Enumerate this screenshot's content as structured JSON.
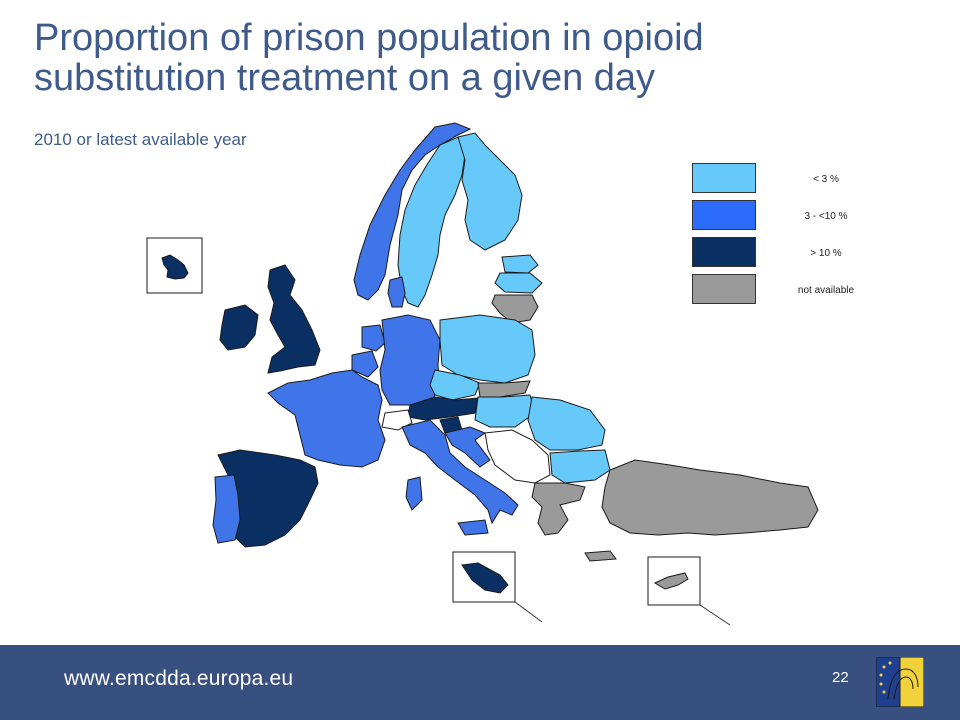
{
  "slide": {
    "title": "Proportion of prison population in opioid substitution treatment on a given day",
    "subtitle": "2010 or latest available year"
  },
  "legend": [
    {
      "label": "< 3 %",
      "color": "#66c9f9"
    },
    {
      "label": "3 - <10 %",
      "color": "#2b6dfa"
    },
    {
      "label": "> 10 %",
      "color": "#0a3063"
    },
    {
      "label": "not available",
      "color": "#9a9a9a"
    }
  ],
  "colors": {
    "lt3": "#66c9f9",
    "mid": "#3f75e8",
    "gt10": "#0a3063",
    "na": "#9a9a9a",
    "footer": "#38507f",
    "title": "#3f5b8c"
  },
  "footer": {
    "url": "www.emcdda.europa.eu",
    "page_number": "22"
  }
}
